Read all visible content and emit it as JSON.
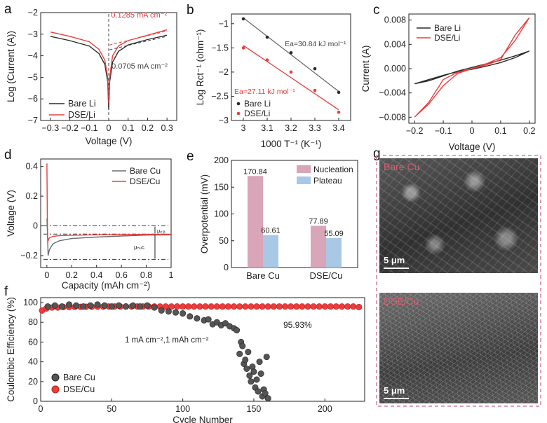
{
  "panels": {
    "a": {
      "letter": "a",
      "ylabel": "Log  (Current (A))",
      "xlabel": "Voltage (V)",
      "legend": [
        "Bare Li",
        "DSE/Li"
      ],
      "annotations": {
        "red": "0.1285 mA cm⁻²",
        "black": "0.0705 mA cm⁻²"
      }
    },
    "b": {
      "letter": "b",
      "ylabel": "Log Rct⁻¹ (ohm⁻¹)",
      "xlabel": "1000 T⁻¹ (K⁻¹)",
      "legend": [
        "Bare Li",
        "DSE/Li"
      ],
      "annotations": {
        "black": "Ea=30.84 kJ mol⁻¹",
        "red": "Ea=27.11 kJ mol⁻¹"
      }
    },
    "c": {
      "letter": "c",
      "ylabel": "Current (A)",
      "xlabel": "Voltage (V)",
      "legend": [
        "Bare Li",
        "DSE/Li"
      ]
    },
    "d": {
      "letter": "d",
      "ylabel": "Voltage (V)",
      "xlabel": "Capacity  (mAh cm⁻²)",
      "legend": [
        "Bare Cu",
        "DSE/Cu"
      ],
      "annotations": {
        "mu_pla": "μₚₗₐ",
        "mu_nuc": "μₙᵤc"
      }
    },
    "e": {
      "letter": "e",
      "ylabel": "Overpotential (mV)",
      "legend": [
        "Nucleation",
        "Plateau"
      ]
    },
    "f": {
      "letter": "f",
      "ylabel": "Coulombic Efficiency (%)",
      "xlabel": "Cycle Number",
      "legend": [
        "Bare Cu",
        "DSE/Cu"
      ],
      "annotations": {
        "condition": "1 mA cm⁻²,1 mAh cm⁻²",
        "ce": "95.93%"
      }
    },
    "g": {
      "letter": "g",
      "top_label": "Bare Cu",
      "bottom_label": "DSE/Cu",
      "scale": "5 μm"
    }
  },
  "colors": {
    "black": "#2a2a2a",
    "red": "#ee3b3b",
    "nucleation": "#d9a5b8",
    "plateau": "#a9c8e6",
    "gray": "#6b6b6b"
  },
  "chart_data": [
    {
      "panel": "a",
      "type": "line",
      "title": "",
      "xlabel": "Voltage (V)",
      "ylabel": "Log  (Current (A))",
      "xlim": [
        -0.35,
        0.35
      ],
      "ylim": [
        -7,
        -2
      ],
      "xticks": [
        -0.3,
        -0.2,
        -0.1,
        0.0,
        0.1,
        0.2,
        0.3
      ],
      "yticks": [
        -7,
        -6,
        -5,
        -4,
        -3,
        -2
      ],
      "series": [
        {
          "name": "Bare Li",
          "x": [
            -0.3,
            -0.2,
            -0.1,
            -0.05,
            -0.02,
            -0.005,
            0.0,
            0.005,
            0.02,
            0.05,
            0.1,
            0.2,
            0.3
          ],
          "y": [
            -3.1,
            -3.3,
            -3.55,
            -3.9,
            -4.4,
            -5.2,
            -6.5,
            -5.2,
            -4.3,
            -3.8,
            -3.5,
            -3.25,
            -3.05
          ]
        },
        {
          "name": "DSE/Li",
          "x": [
            -0.3,
            -0.2,
            -0.1,
            -0.05,
            -0.02,
            -0.005,
            0.0,
            0.005,
            0.02,
            0.05,
            0.1,
            0.2,
            0.3
          ],
          "y": [
            -2.9,
            -3.1,
            -3.35,
            -3.7,
            -4.2,
            -5.0,
            -6.3,
            -5.0,
            -4.0,
            -3.55,
            -3.3,
            -3.05,
            -2.8
          ]
        }
      ]
    },
    {
      "panel": "b",
      "type": "scatter",
      "title": "",
      "xlabel": "1000 T⁻¹ (K⁻¹)",
      "ylabel": "Log Rct⁻¹ (ohm⁻¹)",
      "xlim": [
        2.95,
        3.45
      ],
      "ylim": [
        -3.0,
        -0.8
      ],
      "xticks": [
        3.0,
        3.1,
        3.2,
        3.3,
        3.4
      ],
      "yticks": [
        -3.0,
        -2.5,
        -2.0,
        -1.5,
        -1.0
      ],
      "series": [
        {
          "name": "Bare Li",
          "x": [
            3.0,
            3.1,
            3.2,
            3.3,
            3.4
          ],
          "y": [
            -0.9,
            -1.28,
            -1.6,
            -1.93,
            -2.42
          ],
          "fit": [
            [
              3.0,
              -0.88
            ],
            [
              3.4,
              -2.4
            ]
          ]
        },
        {
          "name": "DSE/Li",
          "x": [
            3.0,
            3.1,
            3.2,
            3.3,
            3.4
          ],
          "y": [
            -1.5,
            -1.75,
            -2.0,
            -2.38,
            -2.83
          ],
          "fit": [
            [
              3.0,
              -1.45
            ],
            [
              3.4,
              -2.78
            ]
          ]
        }
      ]
    },
    {
      "panel": "c",
      "type": "line",
      "title": "",
      "xlabel": "Voltage (V)",
      "ylabel": "Current (A)",
      "xlim": [
        -0.22,
        0.22
      ],
      "ylim": [
        -0.009,
        0.009
      ],
      "xticks": [
        -0.2,
        -0.1,
        0.0,
        0.1,
        0.2
      ],
      "yticks": [
        -0.008,
        -0.004,
        0.0,
        0.004,
        0.008
      ],
      "series": [
        {
          "name": "Bare Li",
          "x": [
            -0.2,
            -0.15,
            -0.1,
            -0.05,
            0,
            0.05,
            0.1,
            0.15,
            0.2,
            0.15,
            0.1,
            0.05,
            0,
            -0.05,
            -0.1,
            -0.15,
            -0.2
          ],
          "y": [
            -0.0025,
            -0.0018,
            -0.0011,
            -0.0005,
            -0.0001,
            0.0004,
            0.001,
            0.0018,
            0.0029,
            0.0021,
            0.0014,
            0.0008,
            0.0002,
            -0.0004,
            -0.0012,
            -0.002,
            -0.0025
          ]
        },
        {
          "name": "DSE/Li",
          "x": [
            -0.2,
            -0.15,
            -0.1,
            -0.05,
            0,
            0.05,
            0.1,
            0.15,
            0.2,
            0.15,
            0.1,
            0.05,
            0,
            -0.05,
            -0.1,
            -0.15,
            -0.2
          ],
          "y": [
            -0.008,
            -0.0055,
            -0.0018,
            -0.0006,
            0.0,
            0.0008,
            0.0018,
            0.0046,
            0.0084,
            0.0055,
            0.0015,
            0.0006,
            0.0,
            -0.0008,
            -0.0028,
            -0.0058,
            -0.008
          ]
        }
      ]
    },
    {
      "panel": "d",
      "type": "line",
      "title": "",
      "xlabel": "Capacity  (mAh cm⁻²)",
      "ylabel": "Voltage (V)",
      "xlim": [
        -0.05,
        1.0
      ],
      "ylim": [
        -0.28,
        0.45
      ],
      "xticks": [
        0.0,
        0.2,
        0.4,
        0.6,
        0.8,
        1.0
      ],
      "yticks": [
        -0.2,
        0.0,
        0.2,
        0.4
      ],
      "series": [
        {
          "name": "Bare Cu",
          "x": [
            0.0,
            0.005,
            0.01,
            0.02,
            0.05,
            0.1,
            0.2,
            0.4,
            0.6,
            0.8,
            1.0
          ],
          "y": [
            0.05,
            -0.05,
            -0.2,
            -0.16,
            -0.12,
            -0.1,
            -0.085,
            -0.075,
            -0.068,
            -0.062,
            -0.06
          ]
        },
        {
          "name": "DSE/Cu",
          "x": [
            0.0,
            0.003,
            0.006,
            0.01,
            0.02,
            0.05,
            0.1,
            0.2,
            0.4,
            0.6,
            0.8,
            1.0
          ],
          "y": [
            0.42,
            0.1,
            -0.08,
            -0.1,
            -0.08,
            -0.07,
            -0.066,
            -0.063,
            -0.06,
            -0.058,
            -0.057,
            -0.056
          ]
        }
      ],
      "reference_lines": [
        0.0,
        -0.055,
        -0.225
      ]
    },
    {
      "panel": "e",
      "type": "bar",
      "title": "",
      "ylabel": "Overpotential (mV)",
      "categories": [
        "Bare Cu",
        "DSE/Cu"
      ],
      "ylim": [
        0,
        200
      ],
      "yticks": [
        0,
        50,
        100,
        150,
        200
      ],
      "series": [
        {
          "name": "Nucleation",
          "values": [
            170.84,
            77.89
          ],
          "labels": [
            "170.84",
            "77.89"
          ]
        },
        {
          "name": "Plateau",
          "values": [
            60.61,
            55.09
          ],
          "labels": [
            "60.61",
            "55.09"
          ]
        }
      ]
    },
    {
      "panel": "f",
      "type": "scatter",
      "title": "",
      "xlabel": "Cycle Number",
      "ylabel": "Coulombic Efficiency (%)",
      "xlim": [
        0,
        228
      ],
      "ylim": [
        0,
        105
      ],
      "xticks": [
        0,
        50,
        100,
        150,
        200
      ],
      "yticks": [
        0,
        20,
        40,
        60,
        80,
        100
      ],
      "series": [
        {
          "name": "Bare Cu",
          "x": [
            5,
            10,
            15,
            20,
            25,
            30,
            35,
            40,
            45,
            50,
            55,
            60,
            65,
            70,
            75,
            80,
            85,
            90,
            95,
            100,
            105,
            110,
            115,
            118,
            121,
            124,
            127,
            130,
            133,
            136,
            138,
            140,
            141,
            142,
            143,
            144,
            145,
            146,
            147,
            148,
            149,
            150,
            151,
            152,
            153,
            154,
            155,
            156,
            157,
            158,
            159,
            160
          ],
          "y": [
            96,
            97,
            96,
            98,
            97,
            96,
            97,
            98,
            97,
            96,
            97,
            96,
            97,
            96,
            97,
            95,
            92,
            91,
            90,
            89,
            86,
            84,
            82,
            83,
            78,
            80,
            77,
            79,
            76,
            74,
            72,
            48,
            60,
            56,
            38,
            42,
            33,
            50,
            26,
            20,
            35,
            30,
            14,
            22,
            10,
            40,
            28,
            5,
            12,
            8,
            45,
            3
          ]
        },
        {
          "name": "DSE/Cu",
          "x": [
            1,
            4,
            8,
            12,
            16,
            20,
            24,
            28,
            32,
            36,
            40,
            44,
            48,
            52,
            56,
            60,
            64,
            68,
            72,
            76,
            80,
            84,
            88,
            92,
            96,
            100,
            104,
            108,
            112,
            116,
            120,
            124,
            128,
            132,
            136,
            140,
            144,
            148,
            152,
            156,
            160,
            164,
            168,
            172,
            176,
            180,
            184,
            188,
            192,
            196,
            200,
            204,
            208,
            212,
            216,
            220,
            224
          ],
          "y": [
            92,
            94,
            95,
            95,
            95.5,
            95.5,
            95.6,
            95.7,
            95.8,
            95.8,
            95.9,
            95.9,
            96,
            96,
            96,
            96,
            96,
            96,
            96,
            96,
            96,
            96,
            96,
            96,
            96,
            96,
            96,
            96,
            96,
            96,
            96,
            96,
            96,
            96,
            96,
            96,
            96,
            96,
            96,
            96,
            96,
            96,
            96,
            96,
            96,
            96,
            96,
            96,
            96,
            96,
            96,
            96,
            96,
            96,
            96,
            96,
            95.5
          ]
        }
      ]
    }
  ]
}
